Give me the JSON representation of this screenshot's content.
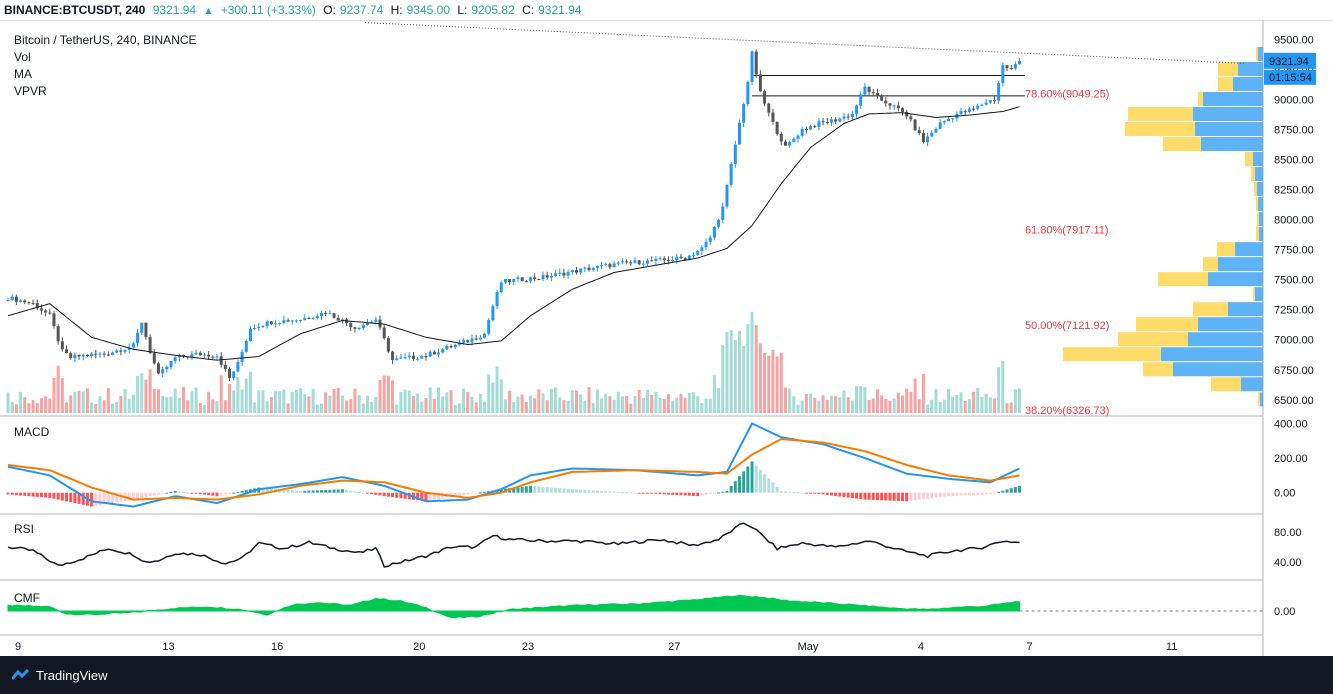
{
  "header": {
    "symbol": "BINANCE:BTCUSDT, 240",
    "last": "9321.94",
    "change": "+300.11 (+3.33%)",
    "o_label": "O:",
    "o_value": "9237.74",
    "h_label": "H:",
    "h_value": "9345.00",
    "l_label": "L:",
    "l_value": "9205.82",
    "c_label": "C:",
    "c_value": "9321.94"
  },
  "legend": {
    "title": "Bitcoin / TetherUS, 240, BINANCE",
    "vol": "Vol",
    "ma": "MA",
    "vpvr": "VPVR"
  },
  "panes": {
    "macd": "MACD",
    "rsi": "RSI",
    "cmf": "CMF"
  },
  "price_badges": {
    "last_price": "9321.94",
    "countdown": "01:15:54"
  },
  "footer": {
    "brand": "TradingView"
  },
  "colors": {
    "up": "#2196f3",
    "down": "#555555",
    "vol_up": "#a3dbd6",
    "vol_down": "#f5a3a3",
    "ma": "#131722",
    "macd": "#2196f3",
    "signal": "#f57c00",
    "fib": "#f23645",
    "cmf": "#00c853",
    "vpvr_up": "#42a5f5",
    "vpvr_down": "#ffd54f"
  },
  "chart_data": [
    {
      "type": "candlestick",
      "title": "Bitcoin / TetherUS, 240, BINANCE",
      "x_ticks": [
        "9",
        "13",
        "16",
        "20",
        "23",
        "27",
        "May",
        "4",
        "7",
        "11"
      ],
      "y_ticks": [
        "9500.00",
        "9250.00",
        "9000.00",
        "8750.00",
        "8500.00",
        "8250.00",
        "8000.00",
        "7750.00",
        "7500.00",
        "7250.00",
        "7000.00",
        "6750.00",
        "6500.00"
      ],
      "ylim": [
        6390,
        9620
      ],
      "close_path": [
        [
          0,
          7350
        ],
        [
          6,
          7300
        ],
        [
          10,
          7200
        ],
        [
          13,
          6900
        ],
        [
          15,
          6850
        ],
        [
          18,
          6870
        ],
        [
          23,
          6880
        ],
        [
          30,
          6950
        ],
        [
          32,
          7150
        ],
        [
          34,
          6900
        ],
        [
          36,
          6700
        ],
        [
          40,
          6850
        ],
        [
          45,
          6880
        ],
        [
          50,
          6870
        ],
        [
          53,
          6680
        ],
        [
          55,
          6800
        ],
        [
          58,
          7100
        ],
        [
          63,
          7150
        ],
        [
          70,
          7170
        ],
        [
          76,
          7230
        ],
        [
          80,
          7160
        ],
        [
          83,
          7100
        ],
        [
          88,
          7170
        ],
        [
          90,
          7000
        ],
        [
          92,
          6830
        ],
        [
          96,
          6850
        ],
        [
          100,
          6870
        ],
        [
          104,
          6920
        ],
        [
          110,
          6990
        ],
        [
          114,
          7050
        ],
        [
          116,
          7280
        ],
        [
          118,
          7480
        ],
        [
          122,
          7500
        ],
        [
          128,
          7520
        ],
        [
          134,
          7560
        ],
        [
          140,
          7600
        ],
        [
          148,
          7640
        ],
        [
          156,
          7660
        ],
        [
          162,
          7680
        ],
        [
          166,
          7760
        ],
        [
          168,
          7850
        ],
        [
          171,
          8100
        ],
        [
          173,
          8450
        ],
        [
          175,
          8800
        ],
        [
          177,
          9150
        ],
        [
          178,
          9380
        ],
        [
          180,
          9050
        ],
        [
          183,
          8800
        ],
        [
          186,
          8600
        ],
        [
          190,
          8750
        ],
        [
          194,
          8800
        ],
        [
          198,
          8830
        ],
        [
          202,
          8880
        ],
        [
          205,
          9100
        ],
        [
          208,
          9010
        ],
        [
          211,
          8960
        ],
        [
          215,
          8870
        ],
        [
          219,
          8650
        ],
        [
          223,
          8800
        ],
        [
          227,
          8880
        ],
        [
          231,
          8920
        ],
        [
          234,
          8980
        ],
        [
          236,
          9000
        ],
        [
          238,
          9280
        ],
        [
          240,
          9250
        ],
        [
          242,
          9322
        ]
      ],
      "ma_path": [
        [
          0,
          7200
        ],
        [
          10,
          7300
        ],
        [
          20,
          7020
        ],
        [
          30,
          6920
        ],
        [
          40,
          6870
        ],
        [
          50,
          6830
        ],
        [
          60,
          6860
        ],
        [
          70,
          7050
        ],
        [
          80,
          7160
        ],
        [
          90,
          7130
        ],
        [
          100,
          7020
        ],
        [
          110,
          6960
        ],
        [
          118,
          6990
        ],
        [
          125,
          7200
        ],
        [
          135,
          7420
        ],
        [
          145,
          7560
        ],
        [
          155,
          7620
        ],
        [
          165,
          7680
        ],
        [
          172,
          7760
        ],
        [
          178,
          7950
        ],
        [
          185,
          8300
        ],
        [
          192,
          8600
        ],
        [
          200,
          8800
        ],
        [
          206,
          8880
        ],
        [
          214,
          8890
        ],
        [
          222,
          8850
        ],
        [
          230,
          8870
        ],
        [
          238,
          8900
        ],
        [
          242,
          8940
        ]
      ],
      "horizontal_lines": [
        9200,
        9030
      ],
      "trendline_from": 9640,
      "trendline_to": 9300,
      "fib_levels": [
        {
          "label": "78.60%(9049.25)",
          "value": 9049.25
        },
        {
          "label": "61.80%(7917.11)",
          "value": 7917.11
        },
        {
          "label": "50.00%(7121.92)",
          "value": 7121.92
        },
        {
          "label": "38.20%(6326.73)",
          "value": 6326.73
        }
      ],
      "vpvr_bins": [
        {
          "price": 9375,
          "up": 5,
          "down": 2
        },
        {
          "price": 9250,
          "up": 25,
          "down": 20
        },
        {
          "price": 9125,
          "up": 30,
          "down": 15
        },
        {
          "price": 9000,
          "up": 60,
          "down": 5
        },
        {
          "price": 8875,
          "up": 70,
          "down": 65
        },
        {
          "price": 8750,
          "up": 68,
          "down": 70
        },
        {
          "price": 8625,
          "up": 62,
          "down": 38
        },
        {
          "price": 8500,
          "up": 10,
          "down": 8
        },
        {
          "price": 8375,
          "up": 8,
          "down": 4
        },
        {
          "price": 8250,
          "up": 6,
          "down": 3
        },
        {
          "price": 8125,
          "up": 5,
          "down": 2
        },
        {
          "price": 8000,
          "up": 4,
          "down": 2
        },
        {
          "price": 7875,
          "up": 4,
          "down": 3
        },
        {
          "price": 7750,
          "up": 28,
          "down": 18
        },
        {
          "price": 7625,
          "up": 45,
          "down": 15
        },
        {
          "price": 7500,
          "up": 55,
          "down": 50
        },
        {
          "price": 7375,
          "up": 8,
          "down": 2
        },
        {
          "price": 7250,
          "up": 35,
          "down": 35
        },
        {
          "price": 7125,
          "up": 65,
          "down": 62
        },
        {
          "price": 7000,
          "up": 75,
          "down": 70
        },
        {
          "price": 6875,
          "up": 102,
          "down": 98
        },
        {
          "price": 6750,
          "up": 90,
          "down": 30
        },
        {
          "price": 6625,
          "up": 22,
          "down": 30
        },
        {
          "price": 6500,
          "up": 3,
          "down": 2
        }
      ]
    },
    {
      "type": "bar",
      "name": "Vol",
      "note": "volume histogram"
    },
    {
      "type": "line",
      "name": "MACD",
      "y_ticks": [
        "400.00",
        "200.00",
        "0.00"
      ],
      "ylim": [
        -100,
        420
      ],
      "macd_path": [
        [
          0,
          150
        ],
        [
          10,
          100
        ],
        [
          20,
          -50
        ],
        [
          30,
          -80
        ],
        [
          40,
          -20
        ],
        [
          50,
          -60
        ],
        [
          60,
          20
        ],
        [
          70,
          50
        ],
        [
          80,
          90
        ],
        [
          90,
          40
        ],
        [
          100,
          -50
        ],
        [
          110,
          -40
        ],
        [
          118,
          20
        ],
        [
          125,
          100
        ],
        [
          135,
          140
        ],
        [
          150,
          130
        ],
        [
          165,
          100
        ],
        [
          172,
          120
        ],
        [
          178,
          400
        ],
        [
          185,
          320
        ],
        [
          195,
          280
        ],
        [
          205,
          200
        ],
        [
          215,
          110
        ],
        [
          225,
          80
        ],
        [
          235,
          60
        ],
        [
          242,
          140
        ]
      ],
      "signal_path": [
        [
          0,
          160
        ],
        [
          10,
          130
        ],
        [
          20,
          30
        ],
        [
          30,
          -40
        ],
        [
          40,
          -30
        ],
        [
          50,
          -40
        ],
        [
          60,
          -10
        ],
        [
          70,
          40
        ],
        [
          80,
          70
        ],
        [
          90,
          60
        ],
        [
          100,
          0
        ],
        [
          110,
          -30
        ],
        [
          118,
          0
        ],
        [
          125,
          60
        ],
        [
          135,
          120
        ],
        [
          150,
          130
        ],
        [
          165,
          120
        ],
        [
          172,
          110
        ],
        [
          178,
          220
        ],
        [
          185,
          310
        ],
        [
          195,
          290
        ],
        [
          205,
          240
        ],
        [
          215,
          160
        ],
        [
          225,
          100
        ],
        [
          235,
          70
        ],
        [
          242,
          100
        ]
      ]
    },
    {
      "type": "line",
      "name": "RSI",
      "y_ticks": [
        "80.00",
        "40.00"
      ],
      "ylim": [
        20,
        100
      ],
      "rsi_path": [
        [
          0,
          60
        ],
        [
          6,
          55
        ],
        [
          12,
          35
        ],
        [
          18,
          45
        ],
        [
          24,
          58
        ],
        [
          30,
          50
        ],
        [
          33,
          40
        ],
        [
          36,
          42
        ],
        [
          40,
          52
        ],
        [
          46,
          50
        ],
        [
          52,
          38
        ],
        [
          56,
          45
        ],
        [
          60,
          65
        ],
        [
          66,
          58
        ],
        [
          72,
          66
        ],
        [
          78,
          58
        ],
        [
          84,
          52
        ],
        [
          88,
          58
        ],
        [
          90,
          35
        ],
        [
          94,
          40
        ],
        [
          100,
          48
        ],
        [
          106,
          60
        ],
        [
          112,
          60
        ],
        [
          116,
          75
        ],
        [
          120,
          70
        ],
        [
          128,
          68
        ],
        [
          136,
          68
        ],
        [
          146,
          64
        ],
        [
          156,
          70
        ],
        [
          164,
          62
        ],
        [
          170,
          70
        ],
        [
          176,
          92
        ],
        [
          178,
          87
        ],
        [
          184,
          58
        ],
        [
          190,
          65
        ],
        [
          198,
          60
        ],
        [
          206,
          68
        ],
        [
          214,
          55
        ],
        [
          220,
          48
        ],
        [
          226,
          55
        ],
        [
          232,
          58
        ],
        [
          238,
          68
        ],
        [
          242,
          66
        ]
      ]
    },
    {
      "type": "area",
      "name": "CMF",
      "y_ticks": [
        "0.00"
      ],
      "ylim": [
        -0.3,
        0.4
      ],
      "cmf_path": [
        [
          0,
          0.08
        ],
        [
          10,
          0.06
        ],
        [
          14,
          -0.04
        ],
        [
          20,
          -0.05
        ],
        [
          30,
          -0.02
        ],
        [
          40,
          0.04
        ],
        [
          48,
          0.06
        ],
        [
          56,
          0.02
        ],
        [
          62,
          -0.05
        ],
        [
          68,
          0.09
        ],
        [
          74,
          0.12
        ],
        [
          82,
          0.08
        ],
        [
          88,
          0.18
        ],
        [
          94,
          0.14
        ],
        [
          100,
          0.05
        ],
        [
          106,
          -0.1
        ],
        [
          112,
          -0.08
        ],
        [
          120,
          0.02
        ],
        [
          130,
          0.06
        ],
        [
          140,
          0.09
        ],
        [
          150,
          0.1
        ],
        [
          160,
          0.14
        ],
        [
          168,
          0.18
        ],
        [
          174,
          0.22
        ],
        [
          180,
          0.2
        ],
        [
          186,
          0.15
        ],
        [
          194,
          0.12
        ],
        [
          204,
          0.08
        ],
        [
          212,
          0.04
        ],
        [
          220,
          0.02
        ],
        [
          226,
          0.05
        ],
        [
          234,
          0.07
        ],
        [
          242,
          0.14
        ]
      ]
    }
  ]
}
